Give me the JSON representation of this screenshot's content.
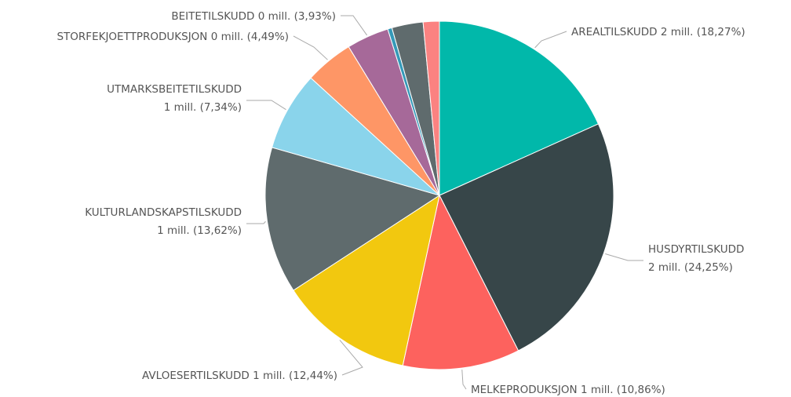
{
  "chart_data": {
    "type": "pie",
    "categories": [
      "AREALTILSKUDD",
      "HUSDYRTILSKUDD",
      "MELKEPRODUKSJON",
      "AVLOESERTILSKUDD",
      "KULTURLANDSKAPSTILSKUDD",
      "UTMARKSBEITETILSKUDD",
      "STORFEKJOETTPRODUKSJON",
      "BEITETILSKUDD",
      null,
      null,
      null
    ],
    "values": [
      18.27,
      24.25,
      10.86,
      12.44,
      13.62,
      7.34,
      4.49,
      3.93,
      0.4,
      2.9,
      1.5
    ],
    "value_labels": [
      "2 mill. (18,27%)",
      "2 mill. (24,25%)",
      "1 mill. (10,86%)",
      "1 mill. (12,44%)",
      "1 mill. (13,62%)",
      "1 mill. (7,34%)",
      "0 mill. (4,49%)",
      "0 mill. (3,93%)",
      null,
      null,
      null
    ],
    "colors": [
      "#01B8AA",
      "#374649",
      "#FD625E",
      "#F2C80F",
      "#5F6B6D",
      "#8AD4EB",
      "#FE9666",
      "#A66999",
      "#3599B8",
      "#5F6B6D",
      "#FB8281"
    ]
  }
}
